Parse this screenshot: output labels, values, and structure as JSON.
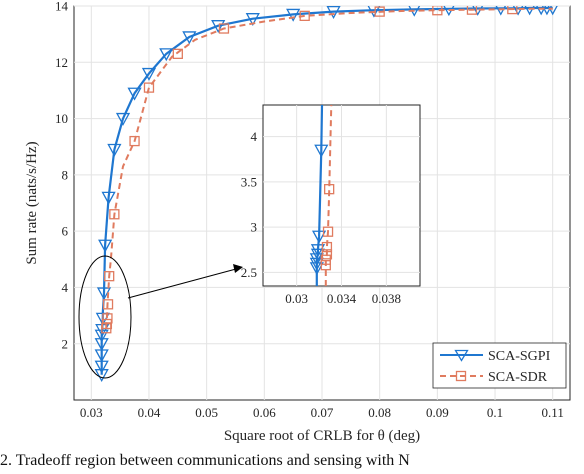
{
  "chart_data": {
    "type": "line",
    "xlabel": "Square root of CRLB for θ (deg)",
    "ylabel": "Sum rate (nats/s/Hz)",
    "xlim": [
      0.027,
      0.113
    ],
    "ylim": [
      0,
      14
    ],
    "xticks": [
      0.03,
      0.04,
      0.05,
      0.06,
      0.07,
      0.08,
      0.09,
      0.1,
      0.11
    ],
    "xtick_labels": [
      "0.03",
      "0.04",
      "0.05",
      "0.06",
      "0.07",
      "0.08",
      "0.09",
      "0.1",
      "0.11"
    ],
    "yticks": [
      2,
      4,
      6,
      8,
      10,
      12,
      14
    ],
    "ytick_labels": [
      "2",
      "4",
      "6",
      "8",
      "10",
      "12",
      "14"
    ],
    "grid": true,
    "legend_position": "bottom-right",
    "series": [
      {
        "name": "SCA-SGPI",
        "color": "#1f77d0",
        "line_style": "solid",
        "marker": "triangle-down",
        "x": [
          0.0318,
          0.0318,
          0.0318,
          0.0318,
          0.0318,
          0.0319,
          0.0319,
          0.032,
          0.032,
          0.0322,
          0.0324,
          0.033,
          0.034,
          0.0355,
          0.0375,
          0.04,
          0.043,
          0.047,
          0.052,
          0.058,
          0.065,
          0.072,
          0.079,
          0.086,
          0.092,
          0.097,
          0.101,
          0.104,
          0.106,
          0.108,
          0.109,
          0.11
        ],
        "y": [
          0.9,
          1.2,
          1.6,
          2.0,
          2.3,
          2.5,
          2.7,
          2.9,
          3.1,
          3.8,
          5.5,
          7.2,
          8.9,
          10.0,
          10.9,
          11.6,
          12.3,
          12.9,
          13.3,
          13.55,
          13.7,
          13.8,
          13.85,
          13.88,
          13.9,
          13.91,
          13.92,
          13.92,
          13.93,
          13.93,
          13.93,
          13.93
        ],
        "marker_x": [
          0.0318,
          0.0318,
          0.0318,
          0.0318,
          0.0318,
          0.0319,
          0.032,
          0.0322,
          0.0324,
          0.033,
          0.034,
          0.0355,
          0.0375,
          0.04,
          0.043,
          0.047,
          0.052,
          0.058,
          0.065,
          0.072,
          0.079,
          0.086,
          0.092,
          0.097,
          0.101,
          0.104,
          0.106,
          0.108,
          0.109,
          0.11
        ],
        "marker_y": [
          0.9,
          1.2,
          1.6,
          2.0,
          2.3,
          2.5,
          2.9,
          3.8,
          5.5,
          7.2,
          8.9,
          10.0,
          10.9,
          11.6,
          12.3,
          12.9,
          13.3,
          13.55,
          13.7,
          13.8,
          13.85,
          13.88,
          13.9,
          13.91,
          13.92,
          13.92,
          13.93,
          13.93,
          13.93,
          13.93
        ]
      },
      {
        "name": "SCA-SDR",
        "color": "#e07b5f",
        "line_style": "dashed",
        "marker": "square",
        "x": [
          0.0326,
          0.0326,
          0.0327,
          0.0328,
          0.0329,
          0.0331,
          0.0334,
          0.034,
          0.0355,
          0.0375,
          0.04,
          0.044,
          0.048,
          0.053,
          0.06,
          0.067,
          0.075,
          0.083,
          0.09,
          0.096,
          0.1,
          0.103,
          0.106,
          0.108,
          0.11
        ],
        "y": [
          2.55,
          2.7,
          2.9,
          3.4,
          3.7,
          4.4,
          5.0,
          6.6,
          8.3,
          9.2,
          11.1,
          12.2,
          12.8,
          13.2,
          13.45,
          13.65,
          13.75,
          13.82,
          13.85,
          13.87,
          13.88,
          13.89,
          13.9,
          13.9,
          13.9
        ],
        "marker_x": [
          0.0326,
          0.0327,
          0.0328,
          0.0329,
          0.0331,
          0.034,
          0.0375,
          0.04,
          0.045,
          0.053,
          0.067,
          0.08,
          0.09,
          0.096,
          0.103
        ],
        "marker_y": [
          2.55,
          2.7,
          2.9,
          3.4,
          4.4,
          6.6,
          9.2,
          11.1,
          12.3,
          13.2,
          13.65,
          13.8,
          13.85,
          13.87,
          13.89
        ]
      }
    ],
    "inset": {
      "xlim": [
        0.027,
        0.041
      ],
      "ylim": [
        2.35,
        4.35
      ],
      "xticks": [
        0.03,
        0.034,
        0.038
      ],
      "xtick_labels": [
        "0.03",
        "0.034",
        "0.038"
      ],
      "yticks": [
        2.5,
        3,
        3.5,
        4
      ],
      "ytick_labels": [
        "2.5",
        "3",
        "3.5",
        "4"
      ],
      "series": [
        {
          "name": "SCA-SGPI",
          "color": "#1f77d0",
          "x": [
            0.0318,
            0.0318,
            0.0318,
            0.0318,
            0.0319,
            0.0319,
            0.032,
            0.0322,
            0.0324
          ],
          "y": [
            2.35,
            2.55,
            2.6,
            2.65,
            2.7,
            2.75,
            2.9,
            3.85,
            5.5
          ],
          "marker_x": [
            0.0318,
            0.0318,
            0.0318,
            0.0319,
            0.0319,
            0.032,
            0.0322
          ],
          "marker_y": [
            2.55,
            2.6,
            2.65,
            2.7,
            2.75,
            2.9,
            3.85
          ]
        },
        {
          "name": "SCA-SDR",
          "color": "#e07b5f",
          "x": [
            0.0326,
            0.0326,
            0.0326,
            0.0327,
            0.0327,
            0.0328,
            0.0329,
            0.0331
          ],
          "y": [
            2.35,
            2.58,
            2.64,
            2.7,
            2.78,
            2.95,
            3.4,
            4.4
          ],
          "marker_x": [
            0.0326,
            0.0326,
            0.0327,
            0.0327,
            0.0328,
            0.0329
          ],
          "marker_y": [
            2.58,
            2.64,
            2.7,
            2.78,
            2.95,
            3.42
          ]
        }
      ]
    }
  },
  "caption": "2.   Tradeoff region between communications and sensing with  N"
}
